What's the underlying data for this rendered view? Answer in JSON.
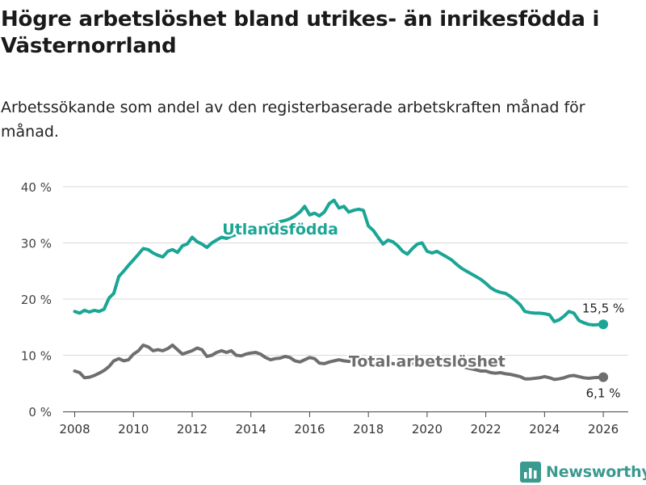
{
  "title": "Högre arbetslöshet bland utrikes- än inrikesfödda i Västernorrland",
  "subtitle": "Arbetssökande som andel av den registerbaserade arbetskraften månad för månad.",
  "brand": {
    "name": "Newsworthy",
    "icon": "bar-chart-logo-icon",
    "color": "#3a9a8e"
  },
  "chart_data": {
    "type": "line",
    "title": "Högre arbetslöshet bland utrikes- än inrikesfödda i Västernorrland",
    "xlabel": "",
    "ylabel": "",
    "xlim": [
      2007.6,
      2026.85
    ],
    "ylim": [
      0,
      40
    ],
    "x_ticks": [
      2008,
      2010,
      2012,
      2014,
      2016,
      2018,
      2020,
      2022,
      2024,
      2026
    ],
    "x_tick_labels": [
      "2008",
      "2010",
      "2012",
      "2014",
      "2016",
      "2018",
      "2020",
      "2022",
      "2024",
      "2026"
    ],
    "y_ticks": [
      0,
      10,
      20,
      30,
      40
    ],
    "y_tick_labels": [
      "0 %",
      "10 %",
      "20 %",
      "30 %",
      "40 %"
    ],
    "grid": true,
    "series": [
      {
        "name": "Utlandsfödda",
        "color": "#1aa595",
        "end_label": "15,5 %",
        "points": [
          [
            2008.0,
            17.8
          ],
          [
            2008.17,
            17.5
          ],
          [
            2008.33,
            18.0
          ],
          [
            2008.5,
            17.7
          ],
          [
            2008.67,
            18.0
          ],
          [
            2008.83,
            17.8
          ],
          [
            2009.0,
            18.2
          ],
          [
            2009.17,
            20.2
          ],
          [
            2009.33,
            21.0
          ],
          [
            2009.5,
            24.0
          ],
          [
            2009.67,
            25.0
          ],
          [
            2009.83,
            26.0
          ],
          [
            2010.0,
            27.0
          ],
          [
            2010.17,
            28.0
          ],
          [
            2010.33,
            29.0
          ],
          [
            2010.5,
            28.8
          ],
          [
            2010.67,
            28.2
          ],
          [
            2010.83,
            27.8
          ],
          [
            2011.0,
            27.5
          ],
          [
            2011.17,
            28.5
          ],
          [
            2011.33,
            28.8
          ],
          [
            2011.5,
            28.3
          ],
          [
            2011.67,
            29.5
          ],
          [
            2011.83,
            29.8
          ],
          [
            2012.0,
            31.0
          ],
          [
            2012.17,
            30.2
          ],
          [
            2012.33,
            29.8
          ],
          [
            2012.5,
            29.2
          ],
          [
            2012.67,
            30.0
          ],
          [
            2012.83,
            30.5
          ],
          [
            2013.0,
            31.0
          ],
          [
            2013.17,
            30.8
          ],
          [
            2013.33,
            31.2
          ],
          [
            2013.5,
            31.5
          ],
          [
            2013.67,
            32.0
          ],
          [
            2013.83,
            32.2
          ],
          [
            2014.0,
            32.5
          ],
          [
            2014.17,
            32.6
          ],
          [
            2014.33,
            32.9
          ],
          [
            2014.5,
            33.1
          ],
          [
            2014.67,
            33.2
          ],
          [
            2014.83,
            33.5
          ],
          [
            2015.0,
            33.8
          ],
          [
            2015.17,
            34.0
          ],
          [
            2015.33,
            34.3
          ],
          [
            2015.5,
            34.8
          ],
          [
            2015.67,
            35.5
          ],
          [
            2015.83,
            36.5
          ],
          [
            2016.0,
            35.0
          ],
          [
            2016.17,
            35.3
          ],
          [
            2016.33,
            34.8
          ],
          [
            2016.5,
            35.5
          ],
          [
            2016.67,
            37.0
          ],
          [
            2016.83,
            37.6
          ],
          [
            2017.0,
            36.2
          ],
          [
            2017.17,
            36.5
          ],
          [
            2017.33,
            35.5
          ],
          [
            2017.5,
            35.8
          ],
          [
            2017.67,
            36.0
          ],
          [
            2017.83,
            35.8
          ],
          [
            2018.0,
            33.0
          ],
          [
            2018.17,
            32.2
          ],
          [
            2018.33,
            31.0
          ],
          [
            2018.5,
            29.8
          ],
          [
            2018.67,
            30.5
          ],
          [
            2018.83,
            30.2
          ],
          [
            2019.0,
            29.5
          ],
          [
            2019.17,
            28.5
          ],
          [
            2019.33,
            28.0
          ],
          [
            2019.5,
            29.0
          ],
          [
            2019.67,
            29.8
          ],
          [
            2019.83,
            30.0
          ],
          [
            2020.0,
            28.5
          ],
          [
            2020.17,
            28.2
          ],
          [
            2020.33,
            28.5
          ],
          [
            2020.5,
            28.0
          ],
          [
            2020.67,
            27.5
          ],
          [
            2020.83,
            27.0
          ],
          [
            2021.0,
            26.2
          ],
          [
            2021.17,
            25.5
          ],
          [
            2021.33,
            25.0
          ],
          [
            2021.5,
            24.5
          ],
          [
            2021.67,
            24.0
          ],
          [
            2021.83,
            23.5
          ],
          [
            2022.0,
            22.8
          ],
          [
            2022.17,
            22.0
          ],
          [
            2022.33,
            21.5
          ],
          [
            2022.5,
            21.2
          ],
          [
            2022.67,
            21.0
          ],
          [
            2022.83,
            20.5
          ],
          [
            2023.0,
            19.8
          ],
          [
            2023.17,
            19.0
          ],
          [
            2023.33,
            17.8
          ],
          [
            2023.5,
            17.6
          ],
          [
            2023.67,
            17.5
          ],
          [
            2023.83,
            17.5
          ],
          [
            2024.0,
            17.4
          ],
          [
            2024.17,
            17.2
          ],
          [
            2024.33,
            16.0
          ],
          [
            2024.5,
            16.3
          ],
          [
            2024.67,
            17.0
          ],
          [
            2024.83,
            17.8
          ],
          [
            2025.0,
            17.5
          ],
          [
            2025.17,
            16.2
          ],
          [
            2025.33,
            15.8
          ],
          [
            2025.5,
            15.5
          ],
          [
            2025.67,
            15.4
          ],
          [
            2026.0,
            15.5
          ]
        ]
      },
      {
        "name": "Total arbetslöshet",
        "color": "#6e6e6e",
        "end_label": "6,1 %",
        "points": [
          [
            2008.0,
            7.2
          ],
          [
            2008.17,
            6.9
          ],
          [
            2008.33,
            6.0
          ],
          [
            2008.5,
            6.1
          ],
          [
            2008.67,
            6.4
          ],
          [
            2008.83,
            6.8
          ],
          [
            2009.0,
            7.3
          ],
          [
            2009.17,
            8.0
          ],
          [
            2009.33,
            9.0
          ],
          [
            2009.5,
            9.4
          ],
          [
            2009.67,
            9.0
          ],
          [
            2009.83,
            9.2
          ],
          [
            2010.0,
            10.2
          ],
          [
            2010.17,
            10.8
          ],
          [
            2010.33,
            11.8
          ],
          [
            2010.5,
            11.5
          ],
          [
            2010.67,
            10.8
          ],
          [
            2010.83,
            11.0
          ],
          [
            2011.0,
            10.8
          ],
          [
            2011.17,
            11.2
          ],
          [
            2011.33,
            11.8
          ],
          [
            2011.5,
            11.0
          ],
          [
            2011.67,
            10.2
          ],
          [
            2011.83,
            10.5
          ],
          [
            2012.0,
            10.8
          ],
          [
            2012.17,
            11.3
          ],
          [
            2012.33,
            11.0
          ],
          [
            2012.5,
            9.8
          ],
          [
            2012.67,
            10.0
          ],
          [
            2012.83,
            10.5
          ],
          [
            2013.0,
            10.8
          ],
          [
            2013.17,
            10.5
          ],
          [
            2013.33,
            10.8
          ],
          [
            2013.5,
            10.0
          ],
          [
            2013.67,
            9.9
          ],
          [
            2013.83,
            10.2
          ],
          [
            2014.0,
            10.4
          ],
          [
            2014.17,
            10.5
          ],
          [
            2014.33,
            10.2
          ],
          [
            2014.5,
            9.6
          ],
          [
            2014.67,
            9.2
          ],
          [
            2014.83,
            9.4
          ],
          [
            2015.0,
            9.5
          ],
          [
            2015.17,
            9.8
          ],
          [
            2015.33,
            9.6
          ],
          [
            2015.5,
            9.0
          ],
          [
            2015.67,
            8.8
          ],
          [
            2015.83,
            9.2
          ],
          [
            2016.0,
            9.6
          ],
          [
            2016.17,
            9.4
          ],
          [
            2016.33,
            8.6
          ],
          [
            2016.5,
            8.5
          ],
          [
            2016.67,
            8.8
          ],
          [
            2016.83,
            9.0
          ],
          [
            2017.0,
            9.2
          ],
          [
            2017.17,
            9.0
          ],
          [
            2017.33,
            8.9
          ],
          [
            2017.5,
            9.0
          ],
          [
            2017.67,
            9.1
          ],
          [
            2017.83,
            9.0
          ],
          [
            2018.0,
            8.9
          ],
          [
            2018.17,
            8.8
          ],
          [
            2018.33,
            8.7
          ],
          [
            2018.5,
            8.6
          ],
          [
            2018.67,
            8.6
          ],
          [
            2018.83,
            8.5
          ],
          [
            2019.0,
            8.4
          ],
          [
            2019.17,
            8.3
          ],
          [
            2019.33,
            8.4
          ],
          [
            2019.5,
            8.5
          ],
          [
            2019.67,
            8.6
          ],
          [
            2019.83,
            8.8
          ],
          [
            2020.0,
            9.0
          ],
          [
            2020.17,
            9.2
          ],
          [
            2020.33,
            9.1
          ],
          [
            2020.5,
            8.9
          ],
          [
            2020.67,
            8.7
          ],
          [
            2020.83,
            8.5
          ],
          [
            2021.0,
            8.3
          ],
          [
            2021.17,
            8.0
          ],
          [
            2021.33,
            7.8
          ],
          [
            2021.5,
            7.6
          ],
          [
            2021.67,
            7.4
          ],
          [
            2021.83,
            7.2
          ],
          [
            2022.0,
            7.2
          ],
          [
            2022.17,
            6.9
          ],
          [
            2022.33,
            6.8
          ],
          [
            2022.5,
            6.9
          ],
          [
            2022.67,
            6.7
          ],
          [
            2022.83,
            6.6
          ],
          [
            2023.0,
            6.4
          ],
          [
            2023.17,
            6.2
          ],
          [
            2023.33,
            5.8
          ],
          [
            2023.5,
            5.8
          ],
          [
            2023.67,
            5.9
          ],
          [
            2023.83,
            6.0
          ],
          [
            2024.0,
            6.2
          ],
          [
            2024.17,
            6.0
          ],
          [
            2024.33,
            5.7
          ],
          [
            2024.5,
            5.8
          ],
          [
            2024.67,
            6.0
          ],
          [
            2024.83,
            6.3
          ],
          [
            2025.0,
            6.4
          ],
          [
            2025.17,
            6.2
          ],
          [
            2025.33,
            6.0
          ],
          [
            2025.5,
            5.9
          ],
          [
            2025.67,
            6.0
          ],
          [
            2026.0,
            6.1
          ]
        ]
      }
    ],
    "annotations": [
      {
        "text": "Utlandsfödda",
        "series": "Utlandsfödda",
        "x": 2015.0,
        "y": 32.5
      },
      {
        "text": "Total arbetslöshet",
        "series": "Total arbetslöshet",
        "x": 2020.0,
        "y": 9.0
      }
    ]
  }
}
